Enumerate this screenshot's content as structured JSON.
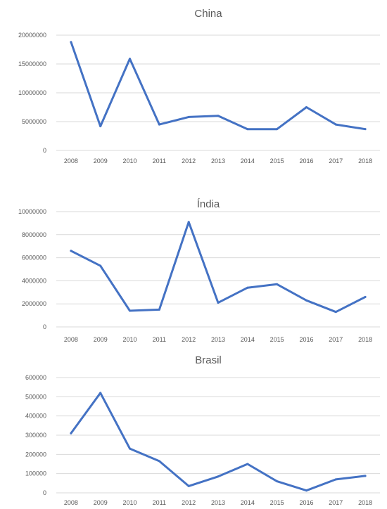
{
  "colors": {
    "series": "#4472c4",
    "grid": "#d9d9d9",
    "text": "#595959"
  },
  "chart_data": [
    {
      "type": "line",
      "title": "China",
      "xlabel": "",
      "ylabel": "",
      "grid": true,
      "categories": [
        "2008",
        "2009",
        "2010",
        "2011",
        "2012",
        "2013",
        "2014",
        "2015",
        "2016",
        "2017",
        "2018"
      ],
      "values": [
        18800000,
        4200000,
        15900000,
        4500000,
        5800000,
        6000000,
        3700000,
        3700000,
        7500000,
        4500000,
        3700000
      ],
      "yticks": [
        0,
        5000000,
        10000000,
        15000000,
        20000000
      ],
      "ytick_labels": [
        "0",
        "5000000",
        "10000000",
        "15000000",
        "20000000"
      ],
      "ylim": [
        0,
        20000000
      ]
    },
    {
      "type": "line",
      "title": "Índia",
      "xlabel": "",
      "ylabel": "",
      "grid": true,
      "categories": [
        "2008",
        "2009",
        "2010",
        "2011",
        "2012",
        "2013",
        "2014",
        "2015",
        "2016",
        "2017",
        "2018"
      ],
      "values": [
        6600000,
        5300000,
        1400000,
        1500000,
        9100000,
        2100000,
        3400000,
        3700000,
        2300000,
        1300000,
        2600000
      ],
      "yticks": [
        0,
        2000000,
        4000000,
        6000000,
        8000000,
        10000000
      ],
      "ytick_labels": [
        "0",
        "2000000",
        "4000000",
        "6000000",
        "8000000",
        "10000000"
      ],
      "ylim": [
        0,
        10000000
      ]
    },
    {
      "type": "line",
      "title": "Brasil",
      "xlabel": "",
      "ylabel": "",
      "grid": true,
      "categories": [
        "2008",
        "2009",
        "2010",
        "2011",
        "2012",
        "2013",
        "2014",
        "2015",
        "2016",
        "2017",
        "2018"
      ],
      "values": [
        310000,
        520000,
        230000,
        165000,
        35000,
        85000,
        150000,
        60000,
        12000,
        70000,
        88000
      ],
      "yticks": [
        0,
        100000,
        200000,
        300000,
        400000,
        500000,
        600000
      ],
      "ytick_labels": [
        "0",
        "100000",
        "200000",
        "300000",
        "400000",
        "500000",
        "600000"
      ],
      "ylim": [
        0,
        600000
      ]
    }
  ]
}
